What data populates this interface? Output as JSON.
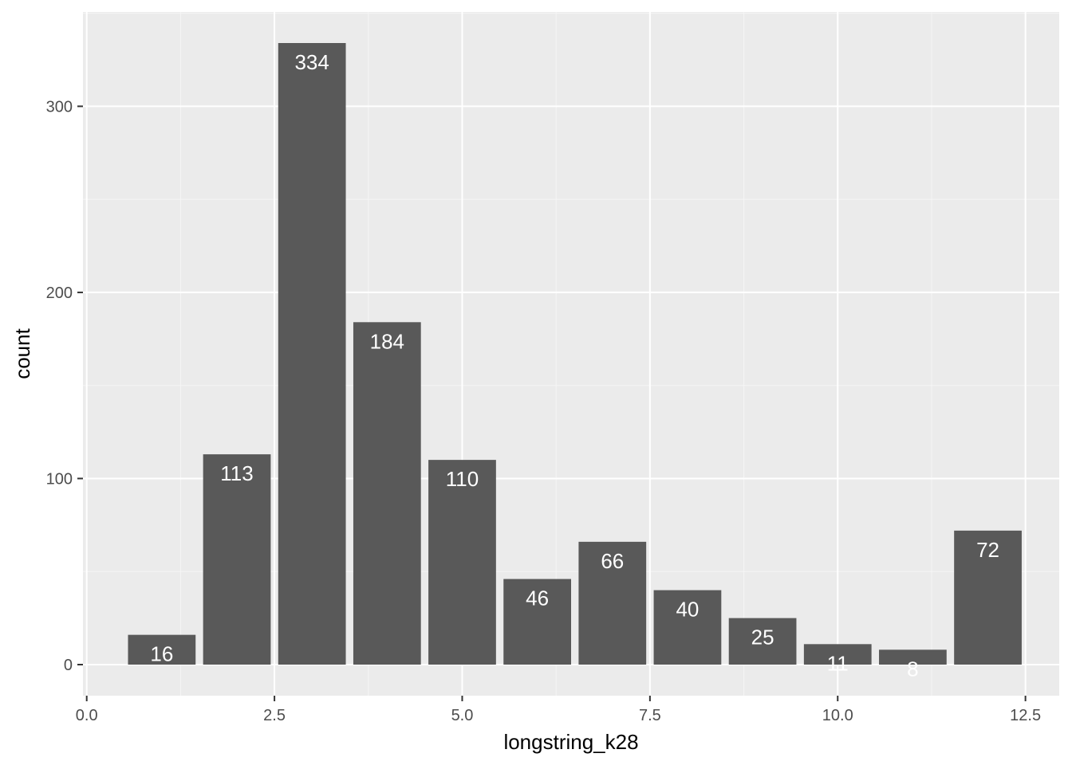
{
  "chart_data": {
    "type": "bar",
    "title": "",
    "xlabel": "longstring_k28",
    "ylabel": "count",
    "x": [
      1,
      2,
      3,
      4,
      5,
      6,
      7,
      8,
      9,
      10,
      11,
      12
    ],
    "values": [
      16,
      113,
      334,
      184,
      110,
      46,
      66,
      40,
      25,
      11,
      8,
      72
    ],
    "data_labels": [
      "16",
      "113",
      "334",
      "184",
      "110",
      "46",
      "66",
      "40",
      "25",
      "11",
      "8",
      "72"
    ],
    "bar_width": 0.9,
    "xlim": [
      -0.05,
      12.95
    ],
    "ylim": [
      -16.7,
      350.7
    ],
    "x_ticks": [
      0,
      2.5,
      5,
      7.5,
      10,
      12.5
    ],
    "x_tick_labels": [
      "0.0",
      "2.5",
      "5.0",
      "7.5",
      "10.0",
      "12.5"
    ],
    "y_ticks": [
      0,
      100,
      200,
      300
    ],
    "y_tick_labels": [
      "0",
      "100",
      "200",
      "300"
    ],
    "grid": true,
    "legend": "none",
    "colors": {
      "panel_background": "#ebebeb",
      "grid_major": "#ffffff",
      "grid_minor": "#f5f5f5",
      "bar_fill": "#595959",
      "bar_label": "#ffffff",
      "tick_label": "#4d4d4d",
      "tick_mark": "#333333",
      "axis_title": "#000000"
    }
  }
}
